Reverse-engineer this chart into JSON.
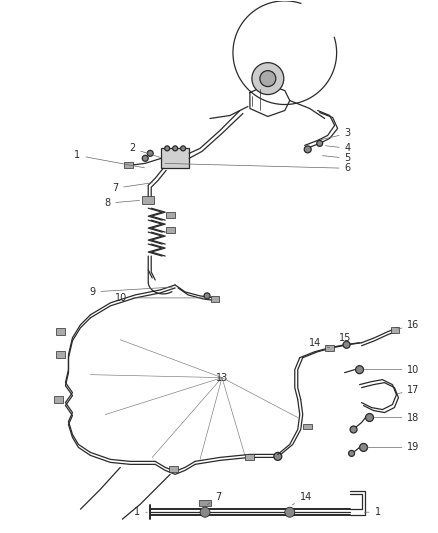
{
  "bg_color": "#ffffff",
  "line_color": "#2a2a2a",
  "label_color": "#2a2a2a",
  "figure_width": 4.38,
  "figure_height": 5.33,
  "dpi": 100
}
